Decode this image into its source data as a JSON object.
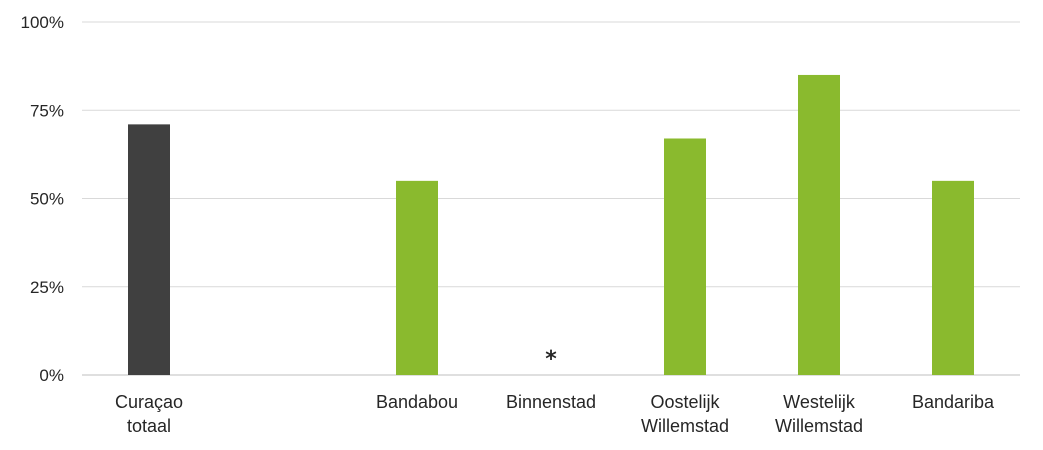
{
  "chart_data": {
    "type": "bar",
    "categories": [
      [
        "Curaçao",
        "totaal"
      ],
      [
        ""
      ],
      [
        "Bandabou"
      ],
      [
        "Binnenstad"
      ],
      [
        "Oostelijk",
        "Willemstad"
      ],
      [
        "Westelijk",
        "Willemstad"
      ],
      [
        "Bandariba"
      ]
    ],
    "values": [
      71,
      null,
      55,
      null,
      67,
      85,
      55
    ],
    "bar_colors": [
      "#404040",
      "#8aba2e",
      "#8aba2e",
      "#8aba2e",
      "#8aba2e",
      "#8aba2e",
      "#8aba2e"
    ],
    "annotations": [
      {
        "category_index": 3,
        "text": "*"
      }
    ],
    "y_ticks": [
      "0%",
      "25%",
      "50%",
      "75%",
      "100%"
    ],
    "ylim": [
      0,
      100
    ],
    "grid": true,
    "title": "",
    "xlabel": "",
    "ylabel": ""
  }
}
